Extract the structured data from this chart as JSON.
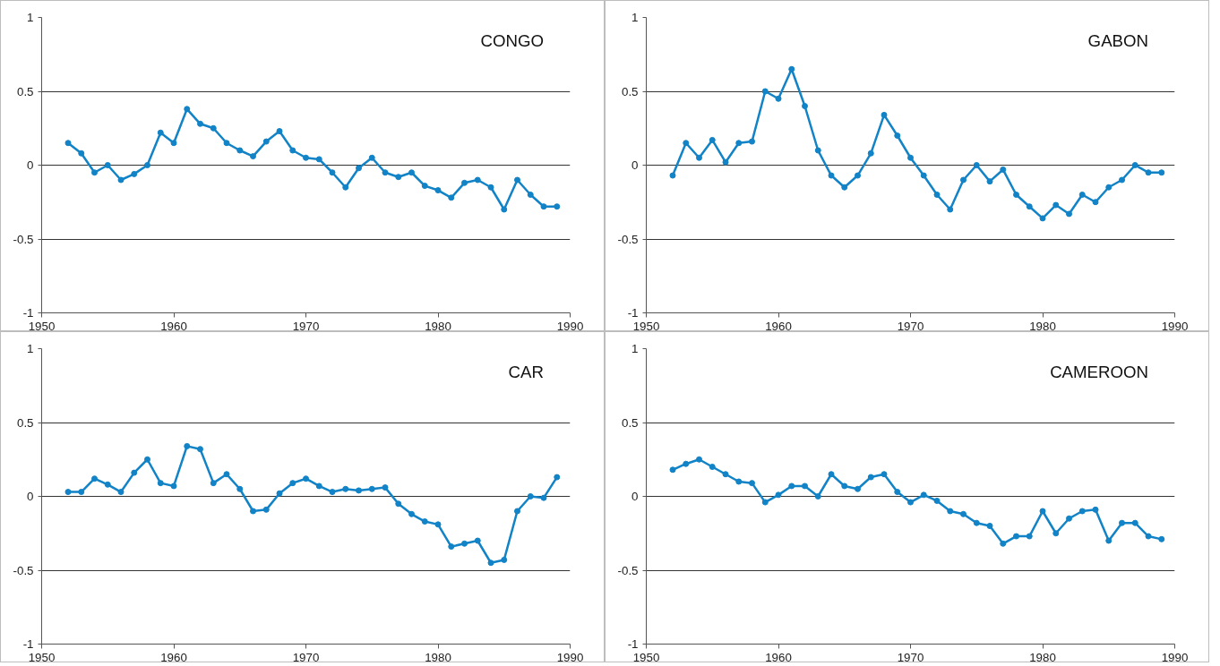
{
  "chart_data": [
    {
      "type": "line",
      "title": "CONGO",
      "color": "#1183c6",
      "marker": "circle",
      "grid": "y",
      "xlim": [
        1950,
        1990
      ],
      "xticks": [
        1950,
        1960,
        1970,
        1980,
        1990
      ],
      "ylim": [
        -1,
        1
      ],
      "yticks": [
        -1,
        -0.5,
        0,
        0.5,
        1
      ],
      "x": [
        1952,
        1953,
        1954,
        1955,
        1956,
        1957,
        1958,
        1959,
        1960,
        1961,
        1962,
        1963,
        1964,
        1965,
        1966,
        1967,
        1968,
        1969,
        1970,
        1971,
        1972,
        1973,
        1974,
        1975,
        1976,
        1977,
        1978,
        1979,
        1980,
        1981,
        1982,
        1983,
        1984,
        1985,
        1986,
        1987,
        1988,
        1989
      ],
      "values": [
        0.15,
        0.08,
        -0.05,
        0,
        -0.1,
        -0.06,
        0,
        0.22,
        0.15,
        0.38,
        0.28,
        0.25,
        0.15,
        0.1,
        0.06,
        0.16,
        0.23,
        0.1,
        0.05,
        0.04,
        -0.05,
        -0.15,
        -0.02,
        0.05,
        -0.05,
        -0.08,
        -0.05,
        -0.14,
        -0.17,
        -0.22,
        -0.12,
        -0.1,
        -0.15,
        -0.3,
        -0.1,
        -0.2,
        -0.28,
        -0.28
      ]
    },
    {
      "type": "line",
      "title": "GABON",
      "color": "#1183c6",
      "marker": "circle",
      "grid": "y",
      "xlim": [
        1950,
        1990
      ],
      "xticks": [
        1950,
        1960,
        1970,
        1980,
        1990
      ],
      "ylim": [
        -1,
        1
      ],
      "yticks": [
        -1,
        -0.5,
        0,
        0.5,
        1
      ],
      "x": [
        1952,
        1953,
        1954,
        1955,
        1956,
        1957,
        1958,
        1959,
        1960,
        1961,
        1962,
        1963,
        1964,
        1965,
        1966,
        1967,
        1968,
        1969,
        1970,
        1971,
        1972,
        1973,
        1974,
        1975,
        1976,
        1977,
        1978,
        1979,
        1980,
        1981,
        1982,
        1983,
        1984,
        1985,
        1986,
        1987,
        1988,
        1989
      ],
      "values": [
        -0.07,
        0.15,
        0.05,
        0.17,
        0.02,
        0.15,
        0.16,
        0.5,
        0.45,
        0.65,
        0.4,
        0.1,
        -0.07,
        -0.15,
        -0.07,
        0.08,
        0.34,
        0.2,
        0.05,
        -0.07,
        -0.2,
        -0.3,
        -0.1,
        0,
        -0.11,
        -0.03,
        -0.2,
        -0.28,
        -0.36,
        -0.27,
        -0.33,
        -0.2,
        -0.25,
        -0.15,
        -0.1,
        0,
        -0.05,
        -0.05
      ]
    },
    {
      "type": "line",
      "title": "CAR",
      "color": "#1183c6",
      "marker": "circle",
      "grid": "y",
      "xlim": [
        1950,
        1990
      ],
      "xticks": [
        1950,
        1960,
        1970,
        1980,
        1990
      ],
      "ylim": [
        -1,
        1
      ],
      "yticks": [
        -1,
        -0.5,
        0,
        0.5,
        1
      ],
      "x": [
        1952,
        1953,
        1954,
        1955,
        1956,
        1957,
        1958,
        1959,
        1960,
        1961,
        1962,
        1963,
        1964,
        1965,
        1966,
        1967,
        1968,
        1969,
        1970,
        1971,
        1972,
        1973,
        1974,
        1975,
        1976,
        1977,
        1978,
        1979,
        1980,
        1981,
        1982,
        1983,
        1984,
        1985,
        1986,
        1987,
        1988,
        1989
      ],
      "values": [
        0.03,
        0.03,
        0.12,
        0.08,
        0.03,
        0.16,
        0.25,
        0.09,
        0.07,
        0.34,
        0.32,
        0.09,
        0.15,
        0.05,
        -0.1,
        -0.09,
        0.02,
        0.09,
        0.12,
        0.07,
        0.03,
        0.05,
        0.04,
        0.05,
        0.06,
        -0.05,
        -0.12,
        -0.17,
        -0.19,
        -0.34,
        -0.32,
        -0.3,
        -0.45,
        -0.43,
        -0.1,
        0,
        -0.01,
        0.13
      ]
    },
    {
      "type": "line",
      "title": "CAMEROON",
      "color": "#1183c6",
      "marker": "circle",
      "grid": "y",
      "xlim": [
        1950,
        1990
      ],
      "xticks": [
        1950,
        1960,
        1970,
        1980,
        1990
      ],
      "ylim": [
        -1,
        1
      ],
      "yticks": [
        -1,
        -0.5,
        0,
        0.5,
        1
      ],
      "x": [
        1952,
        1953,
        1954,
        1955,
        1956,
        1957,
        1958,
        1959,
        1960,
        1961,
        1962,
        1963,
        1964,
        1965,
        1966,
        1967,
        1968,
        1969,
        1970,
        1971,
        1972,
        1973,
        1974,
        1975,
        1976,
        1977,
        1978,
        1979,
        1980,
        1981,
        1982,
        1983,
        1984,
        1985,
        1986,
        1987,
        1988,
        1989
      ],
      "values": [
        0.18,
        0.22,
        0.25,
        0.2,
        0.15,
        0.1,
        0.09,
        -0.04,
        0.01,
        0.07,
        0.07,
        0,
        0.15,
        0.07,
        0.05,
        0.13,
        0.15,
        0.03,
        -0.04,
        0.01,
        -0.03,
        -0.1,
        -0.12,
        -0.18,
        -0.2,
        -0.32,
        -0.27,
        -0.27,
        -0.1,
        -0.25,
        -0.15,
        -0.1,
        -0.09,
        -0.3,
        -0.18,
        -0.18,
        -0.27,
        -0.29
      ]
    }
  ]
}
